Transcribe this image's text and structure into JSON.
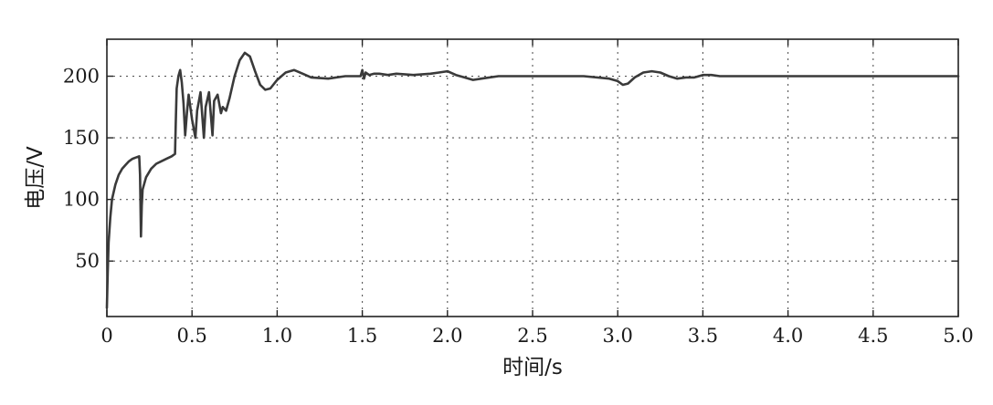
{
  "chart_data": {
    "type": "line",
    "title": "",
    "xlabel": "时间/s",
    "ylabel": "电压/V",
    "xlim": [
      0,
      5
    ],
    "ylim": [
      5,
      230
    ],
    "grid": true,
    "x_ticks": [
      0,
      0.5,
      1.0,
      1.5,
      2.0,
      2.5,
      3.0,
      3.5,
      4.0,
      4.5,
      5.0
    ],
    "x_tick_labels": [
      "0",
      "0.5",
      "1.0",
      "1.5",
      "2.0",
      "2.5",
      "3.0",
      "3.5",
      "4.0",
      "4.5",
      "5.0"
    ],
    "y_ticks": [
      50,
      100,
      150,
      200
    ],
    "y_tick_labels": [
      "50",
      "100",
      "150",
      "200"
    ],
    "series": [
      {
        "color": "#3a3a3a",
        "x": [
          0.0,
          0.005,
          0.01,
          0.02,
          0.03,
          0.05,
          0.07,
          0.09,
          0.11,
          0.13,
          0.15,
          0.17,
          0.19,
          0.195,
          0.2,
          0.205,
          0.21,
          0.23,
          0.26,
          0.29,
          0.32,
          0.35,
          0.38,
          0.4,
          0.405,
          0.41,
          0.42,
          0.43,
          0.44,
          0.45,
          0.46,
          0.47,
          0.48,
          0.5,
          0.52,
          0.53,
          0.55,
          0.57,
          0.58,
          0.6,
          0.62,
          0.63,
          0.65,
          0.67,
          0.68,
          0.7,
          0.72,
          0.75,
          0.78,
          0.81,
          0.84,
          0.87,
          0.9,
          0.93,
          0.96,
          1.0,
          1.05,
          1.1,
          1.15,
          1.2,
          1.3,
          1.4,
          1.45,
          1.49,
          1.5,
          1.51,
          1.52,
          1.54,
          1.57,
          1.6,
          1.65,
          1.7,
          1.8,
          1.9,
          1.95,
          2.0,
          2.05,
          2.1,
          2.15,
          2.2,
          2.3,
          2.5,
          2.8,
          2.95,
          3.0,
          3.03,
          3.06,
          3.1,
          3.15,
          3.2,
          3.25,
          3.3,
          3.35,
          3.4,
          3.45,
          3.5,
          3.55,
          3.6,
          3.7,
          4.0,
          4.5,
          5.0
        ],
        "y": [
          12,
          40,
          65,
          85,
          100,
          112,
          120,
          125,
          128,
          131,
          133,
          134,
          135,
          120,
          70,
          95,
          108,
          118,
          125,
          129,
          131,
          133,
          135,
          137,
          165,
          190,
          200,
          205,
          195,
          178,
          152,
          170,
          185,
          165,
          150,
          172,
          187,
          150,
          175,
          187,
          152,
          180,
          185,
          170,
          175,
          172,
          182,
          200,
          213,
          219,
          216,
          204,
          193,
          189,
          190,
          197,
          203,
          205,
          202,
          199,
          198,
          200,
          200,
          200,
          205,
          198,
          203,
          201,
          202,
          202,
          201,
          202,
          201,
          202,
          203,
          204,
          201,
          199,
          197,
          198,
          200,
          200,
          200,
          198,
          196,
          193,
          194,
          199,
          203,
          204,
          203,
          200,
          198,
          199,
          199,
          201,
          201,
          200,
          200,
          200,
          200,
          200
        ]
      }
    ]
  }
}
